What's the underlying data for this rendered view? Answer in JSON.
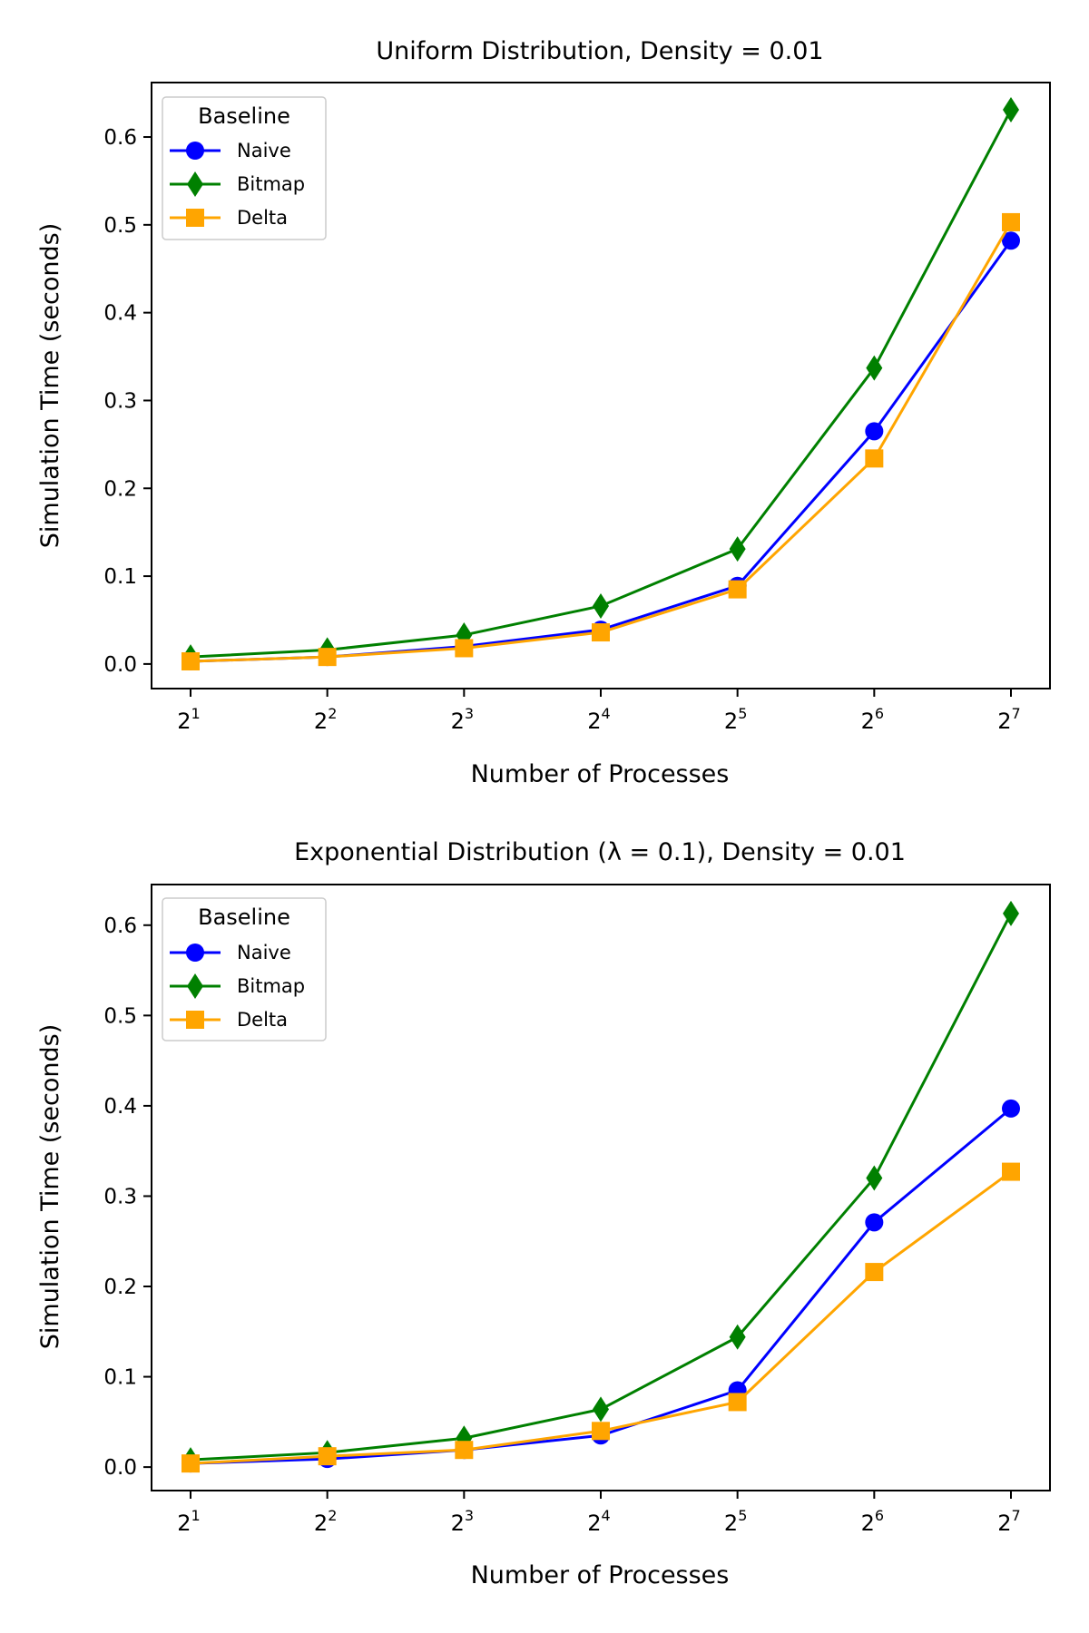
{
  "chart_data": [
    {
      "type": "line",
      "title": "Uniform Distribution, Density = 0.01",
      "xlabel": "Number of Processes",
      "ylabel": "Simulation Time (seconds)",
      "x_scale": "log2",
      "categories": [
        2,
        4,
        8,
        16,
        32,
        64,
        128
      ],
      "x_tick_labels": [
        {
          "base": "2",
          "exp": "1"
        },
        {
          "base": "2",
          "exp": "2"
        },
        {
          "base": "2",
          "exp": "3"
        },
        {
          "base": "2",
          "exp": "4"
        },
        {
          "base": "2",
          "exp": "5"
        },
        {
          "base": "2",
          "exp": "6"
        },
        {
          "base": "2",
          "exp": "7"
        }
      ],
      "ylim": [
        -0.028,
        0.662
      ],
      "y_ticks": [
        0.0,
        0.1,
        0.2,
        0.3,
        0.4,
        0.5,
        0.6
      ],
      "y_tick_labels": [
        "0.0",
        "0.1",
        "0.2",
        "0.3",
        "0.4",
        "0.5",
        "0.6"
      ],
      "grid": false,
      "legend": {
        "title": "Baseline",
        "placement": "top-left"
      },
      "series": [
        {
          "name": "Naive",
          "color": "#0000ff",
          "marker": "circle",
          "values": [
            0.003,
            0.008,
            0.02,
            0.039,
            0.089,
            0.265,
            0.482
          ]
        },
        {
          "name": "Bitmap",
          "color": "#008000",
          "marker": "diamond",
          "values": [
            0.008,
            0.016,
            0.033,
            0.066,
            0.131,
            0.337,
            0.631
          ]
        },
        {
          "name": "Delta",
          "color": "#ffa500",
          "marker": "square",
          "values": [
            0.003,
            0.008,
            0.018,
            0.036,
            0.085,
            0.234,
            0.503
          ]
        }
      ]
    },
    {
      "type": "line",
      "title": "Exponential Distribution (λ = 0.1), Density = 0.01",
      "xlabel": "Number of Processes",
      "ylabel": "Simulation Time (seconds)",
      "x_scale": "log2",
      "categories": [
        2,
        4,
        8,
        16,
        32,
        64,
        128
      ],
      "x_tick_labels": [
        {
          "base": "2",
          "exp": "1"
        },
        {
          "base": "2",
          "exp": "2"
        },
        {
          "base": "2",
          "exp": "3"
        },
        {
          "base": "2",
          "exp": "4"
        },
        {
          "base": "2",
          "exp": "5"
        },
        {
          "base": "2",
          "exp": "6"
        },
        {
          "base": "2",
          "exp": "7"
        }
      ],
      "ylim": [
        -0.026,
        0.645
      ],
      "y_ticks": [
        0.0,
        0.1,
        0.2,
        0.3,
        0.4,
        0.5,
        0.6
      ],
      "y_tick_labels": [
        "0.0",
        "0.1",
        "0.2",
        "0.3",
        "0.4",
        "0.5",
        "0.6"
      ],
      "grid": false,
      "legend": {
        "title": "Baseline",
        "placement": "top-left"
      },
      "series": [
        {
          "name": "Naive",
          "color": "#0000ff",
          "marker": "circle",
          "values": [
            0.004,
            0.009,
            0.019,
            0.035,
            0.085,
            0.271,
            0.397
          ]
        },
        {
          "name": "Bitmap",
          "color": "#008000",
          "marker": "diamond",
          "values": [
            0.008,
            0.016,
            0.032,
            0.064,
            0.144,
            0.32,
            0.613
          ]
        },
        {
          "name": "Delta",
          "color": "#ffa500",
          "marker": "square",
          "values": [
            0.004,
            0.012,
            0.019,
            0.04,
            0.072,
            0.216,
            0.327
          ]
        }
      ]
    }
  ]
}
